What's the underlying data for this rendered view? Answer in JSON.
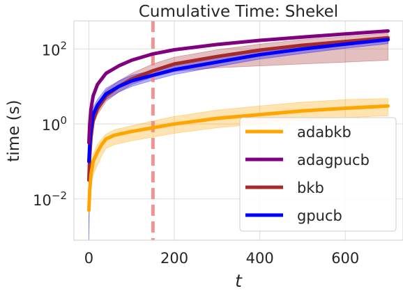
{
  "chart_data": {
    "type": "line",
    "title": "Cumulative Time: Shekel",
    "xlabel": "t",
    "ylabel": "time (s)",
    "y_scale": "log10",
    "xlim": [
      -35,
      735
    ],
    "ylim_log10": [
      -3.1,
      2.75
    ],
    "x_ticks": [
      {
        "value": 0,
        "label": "0"
      },
      {
        "value": 200,
        "label": "200"
      },
      {
        "value": 400,
        "label": "400"
      },
      {
        "value": 600,
        "label": "600"
      }
    ],
    "y_ticks": [
      {
        "exp": -2,
        "label": "10",
        "sup": "−2"
      },
      {
        "exp": 0,
        "label": "10",
        "sup": "0"
      },
      {
        "exp": 2,
        "label": "10",
        "sup": "2"
      }
    ],
    "grid": true,
    "legend_position": "lower-right",
    "vline": {
      "x": 150,
      "color": "#f08080",
      "style": "dashed"
    },
    "series": [
      {
        "name": "adabkb",
        "color": "#ffa500",
        "x": [
          0,
          2,
          5,
          10,
          20,
          30,
          40,
          60,
          100,
          150,
          200,
          300,
          400,
          500,
          600,
          700
        ],
        "log10_y": [
          -2.3,
          -1.75,
          -1.35,
          -1.0,
          -0.75,
          -0.55,
          -0.4,
          -0.3,
          -0.2,
          -0.1,
          0.0,
          0.15,
          0.25,
          0.35,
          0.42,
          0.48
        ],
        "log10_lo": [
          -2.45,
          -2.0,
          -1.65,
          -1.35,
          -1.1,
          -0.85,
          -0.65,
          -0.55,
          -0.45,
          -0.35,
          -0.25,
          -0.1,
          0.0,
          0.1,
          0.17,
          0.22
        ],
        "log10_hi": [
          -2.1,
          -1.55,
          -1.15,
          -0.8,
          -0.55,
          -0.4,
          -0.27,
          -0.15,
          -0.05,
          0.08,
          0.2,
          0.37,
          0.48,
          0.58,
          0.65,
          0.68
        ]
      },
      {
        "name": "adagpucb",
        "color": "#800080",
        "x": [
          0,
          2,
          5,
          10,
          20,
          40,
          70,
          100,
          150,
          200,
          300,
          400,
          500,
          600,
          700
        ],
        "log10_y": [
          -0.5,
          0.0,
          0.4,
          0.75,
          1.05,
          1.35,
          1.55,
          1.7,
          1.87,
          1.98,
          2.12,
          2.23,
          2.32,
          2.4,
          2.48
        ],
        "log10_lo": [
          -0.55,
          -0.05,
          0.35,
          0.7,
          1.0,
          1.3,
          1.52,
          1.67,
          1.84,
          1.95,
          2.09,
          2.2,
          2.29,
          2.37,
          2.45
        ],
        "log10_hi": [
          -0.45,
          0.05,
          0.45,
          0.8,
          1.1,
          1.4,
          1.58,
          1.73,
          1.9,
          2.01,
          2.15,
          2.26,
          2.35,
          2.43,
          2.51
        ]
      },
      {
        "name": "bkb",
        "color": "#a52a2a",
        "x": [
          0,
          2,
          5,
          10,
          20,
          40,
          70,
          100,
          150,
          200,
          300,
          400,
          500,
          600,
          700
        ],
        "log10_y": [
          -1.5,
          -0.85,
          -0.35,
          0.1,
          0.4,
          0.75,
          1.0,
          1.2,
          1.42,
          1.6,
          1.8,
          1.97,
          2.1,
          2.2,
          2.3
        ],
        "log10_lo": [
          -1.8,
          -1.1,
          -0.55,
          -0.05,
          0.25,
          0.6,
          0.85,
          1.05,
          1.25,
          1.4,
          1.5,
          1.55,
          1.6,
          1.65,
          1.7
        ],
        "log10_hi": [
          -1.2,
          -0.6,
          -0.15,
          0.25,
          0.55,
          0.9,
          1.15,
          1.35,
          1.6,
          1.78,
          1.98,
          2.13,
          2.25,
          2.33,
          2.42
        ]
      },
      {
        "name": "gpucb",
        "color": "#0000ff",
        "x": [
          0,
          2,
          5,
          10,
          20,
          40,
          70,
          100,
          150,
          200,
          300,
          400,
          500,
          600,
          700
        ],
        "log10_y": [
          -1.0,
          -0.55,
          -0.15,
          0.25,
          0.5,
          0.8,
          1.0,
          1.15,
          1.3,
          1.45,
          1.65,
          1.85,
          2.0,
          2.13,
          2.25
        ],
        "log10_lo": [
          -3.1,
          -1.6,
          -0.7,
          0.05,
          0.35,
          0.65,
          0.85,
          1.0,
          1.17,
          1.32,
          1.53,
          1.73,
          1.88,
          2.02,
          2.14
        ],
        "log10_hi": [
          -0.8,
          -0.35,
          0.05,
          0.45,
          0.65,
          0.95,
          1.15,
          1.3,
          1.43,
          1.57,
          1.77,
          1.96,
          2.1,
          2.22,
          2.33
        ]
      }
    ]
  }
}
